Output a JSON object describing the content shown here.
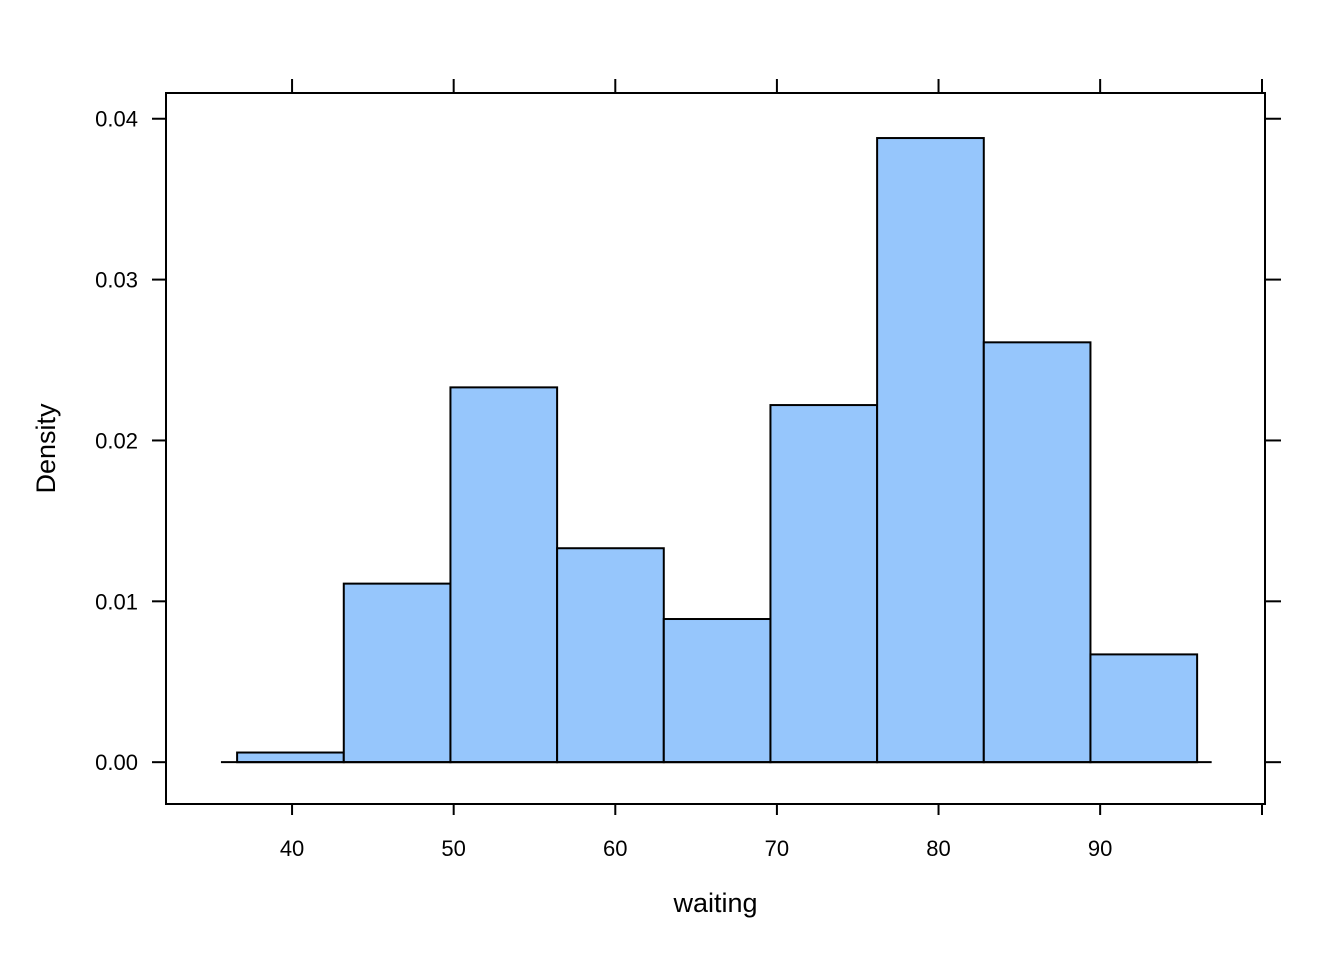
{
  "chart_data": {
    "type": "bar",
    "subtype": "histogram",
    "xlabel": "waiting",
    "ylabel": "Density",
    "xlim": [
      32.2,
      100.2
    ],
    "ylim": [
      -0.0026,
      0.0416
    ],
    "x_ticks": [
      40,
      50,
      60,
      70,
      80,
      90
    ],
    "x_tick_labels": [
      "40",
      "50",
      "60",
      "70",
      "80",
      "90"
    ],
    "y_ticks": [
      0.0,
      0.01,
      0.02,
      0.03,
      0.04
    ],
    "y_tick_labels": [
      "0.00",
      "0.01",
      "0.02",
      "0.03",
      "0.04"
    ],
    "baseline_range": [
      35.6,
      96.9
    ],
    "bins": [
      {
        "x0": 36.6,
        "x1": 43.2,
        "density": 0.0006
      },
      {
        "x0": 43.2,
        "x1": 49.8,
        "density": 0.0111
      },
      {
        "x0": 49.8,
        "x1": 56.4,
        "density": 0.0233
      },
      {
        "x0": 56.4,
        "x1": 63.0,
        "density": 0.0133
      },
      {
        "x0": 63.0,
        "x1": 69.6,
        "density": 0.0089
      },
      {
        "x0": 69.6,
        "x1": 76.2,
        "density": 0.0222
      },
      {
        "x0": 76.2,
        "x1": 82.8,
        "density": 0.0388
      },
      {
        "x0": 82.8,
        "x1": 89.4,
        "density": 0.0261
      },
      {
        "x0": 89.4,
        "x1": 96.0,
        "density": 0.0067
      }
    ],
    "bar_color": "#96C6FC",
    "bar_border_color": "#000000",
    "grid": false,
    "legend": "none"
  }
}
